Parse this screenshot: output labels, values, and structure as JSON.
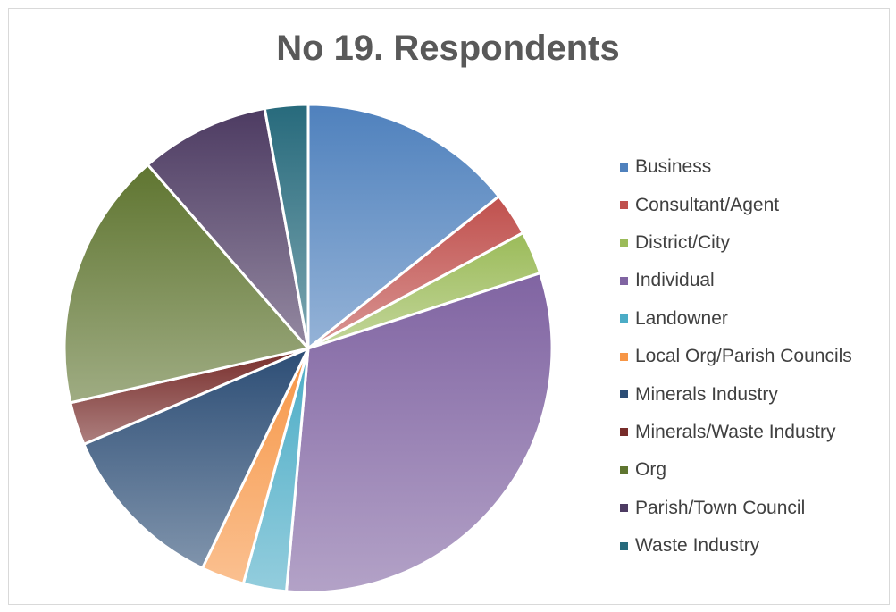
{
  "chart_data": {
    "type": "pie",
    "title": "No 19. Respondents",
    "legend_position": "right",
    "series": [
      {
        "labels": [
          "Business",
          "Consultant/Agent",
          "District/City",
          "Individual",
          "Landowner",
          "Local Org/Parish Councils",
          "Minerals Industry",
          "Minerals/Waste Industry",
          "Org",
          "Parish/Town Council",
          "Waste Industry"
        ],
        "values": [
          5,
          1,
          1,
          11,
          1,
          1,
          4,
          1,
          6,
          3,
          1
        ]
      }
    ],
    "colors": [
      "#4f81bd",
      "#c0504d",
      "#9bbb59",
      "#8064a2",
      "#4bacc6",
      "#f79646",
      "#2c4d75",
      "#772c2a",
      "#5f7530",
      "#4d3b62",
      "#276a7c"
    ]
  }
}
